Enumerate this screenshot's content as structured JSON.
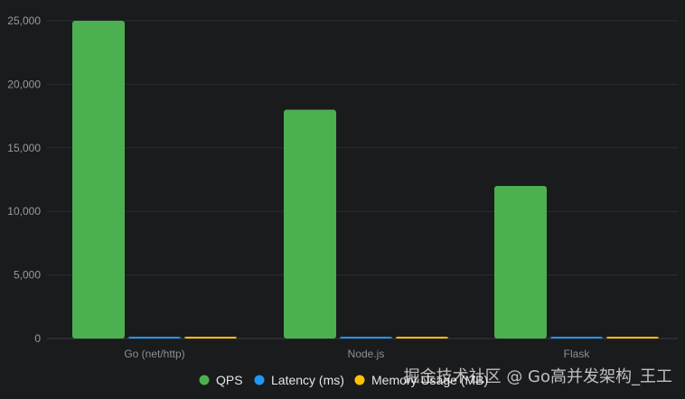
{
  "chart_data": {
    "type": "bar",
    "categories": [
      "Go (net/http)",
      "Node.js",
      "Flask"
    ],
    "series": [
      {
        "name": "QPS",
        "values": [
          25000,
          18000,
          12000
        ],
        "color": "#4caf50"
      },
      {
        "name": "Latency (ms)",
        "values": [
          8,
          12,
          25
        ],
        "color": "#2196f3"
      },
      {
        "name": "Memory Usage (MB)",
        "values": [
          50,
          100,
          80
        ],
        "color": "#ffc107"
      }
    ],
    "yticks": [
      "0",
      "5,000",
      "10,000",
      "15,000",
      "20,000",
      "25,000"
    ],
    "ylim": [
      0,
      25000
    ],
    "grid": true,
    "legend_position": "bottom"
  },
  "watermark": "掘金技术社区 @ Go高并发架构_王工"
}
